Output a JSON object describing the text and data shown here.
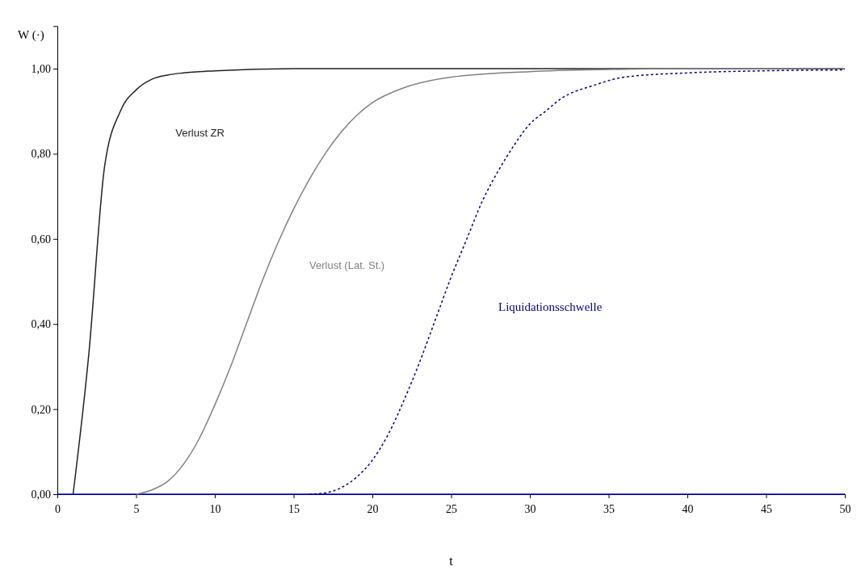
{
  "chart_data": {
    "type": "line",
    "xlabel": "t",
    "ylabel": "W (·)",
    "xlim": [
      0,
      50
    ],
    "xticks": [
      0,
      5,
      10,
      15,
      20,
      25,
      30,
      35,
      40,
      45,
      50
    ],
    "ylim": [
      0,
      1.1
    ],
    "yticks": [
      {
        "value": 0,
        "label": "0,00"
      },
      {
        "value": 0.2,
        "label": "0,20"
      },
      {
        "value": 0.4,
        "label": "0,40"
      },
      {
        "value": 0.6,
        "label": "0,60"
      },
      {
        "value": 0.8,
        "label": "0,80"
      },
      {
        "value": 1,
        "label": "1,00"
      }
    ],
    "grid": false,
    "ref_lines": [
      {
        "axis": "y",
        "value": 0,
        "color": "#0000cc"
      }
    ],
    "series": [
      {
        "name": "Verlust ZR",
        "color": "#222222",
        "line_style": "solid",
        "x": [
          1,
          2,
          3,
          4,
          5,
          6,
          7,
          8,
          10,
          15,
          20,
          30,
          40,
          50
        ],
        "values": [
          0,
          0.33,
          0.77,
          0.9,
          0.95,
          0.975,
          0.985,
          0.99,
          0.995,
          1,
          1,
          1,
          1,
          1
        ]
      },
      {
        "name": "Verlust (Lat. St.)",
        "color": "#808080",
        "line_style": "solid",
        "x": [
          5,
          6,
          7,
          8,
          9,
          10,
          11,
          12,
          13,
          14,
          15,
          16,
          17,
          18,
          19,
          20,
          22,
          25,
          30,
          35,
          40,
          50
        ],
        "values": [
          0,
          0.01,
          0.03,
          0.07,
          0.13,
          0.21,
          0.3,
          0.4,
          0.5,
          0.59,
          0.67,
          0.74,
          0.8,
          0.85,
          0.89,
          0.92,
          0.955,
          0.98,
          0.993,
          0.998,
          1,
          1
        ]
      },
      {
        "name": "Liquidationsschwelle",
        "color": "#000080",
        "line_style": "dotted",
        "x": [
          16,
          17,
          18,
          19,
          20,
          21,
          22,
          23,
          24,
          25,
          26,
          27,
          28,
          29,
          30,
          31,
          32,
          34,
          36,
          40,
          45,
          50
        ],
        "values": [
          0,
          0.003,
          0.015,
          0.04,
          0.08,
          0.14,
          0.22,
          0.31,
          0.41,
          0.51,
          0.6,
          0.69,
          0.76,
          0.82,
          0.87,
          0.9,
          0.93,
          0.96,
          0.98,
          0.99,
          0.995,
          0.997
        ]
      }
    ]
  }
}
